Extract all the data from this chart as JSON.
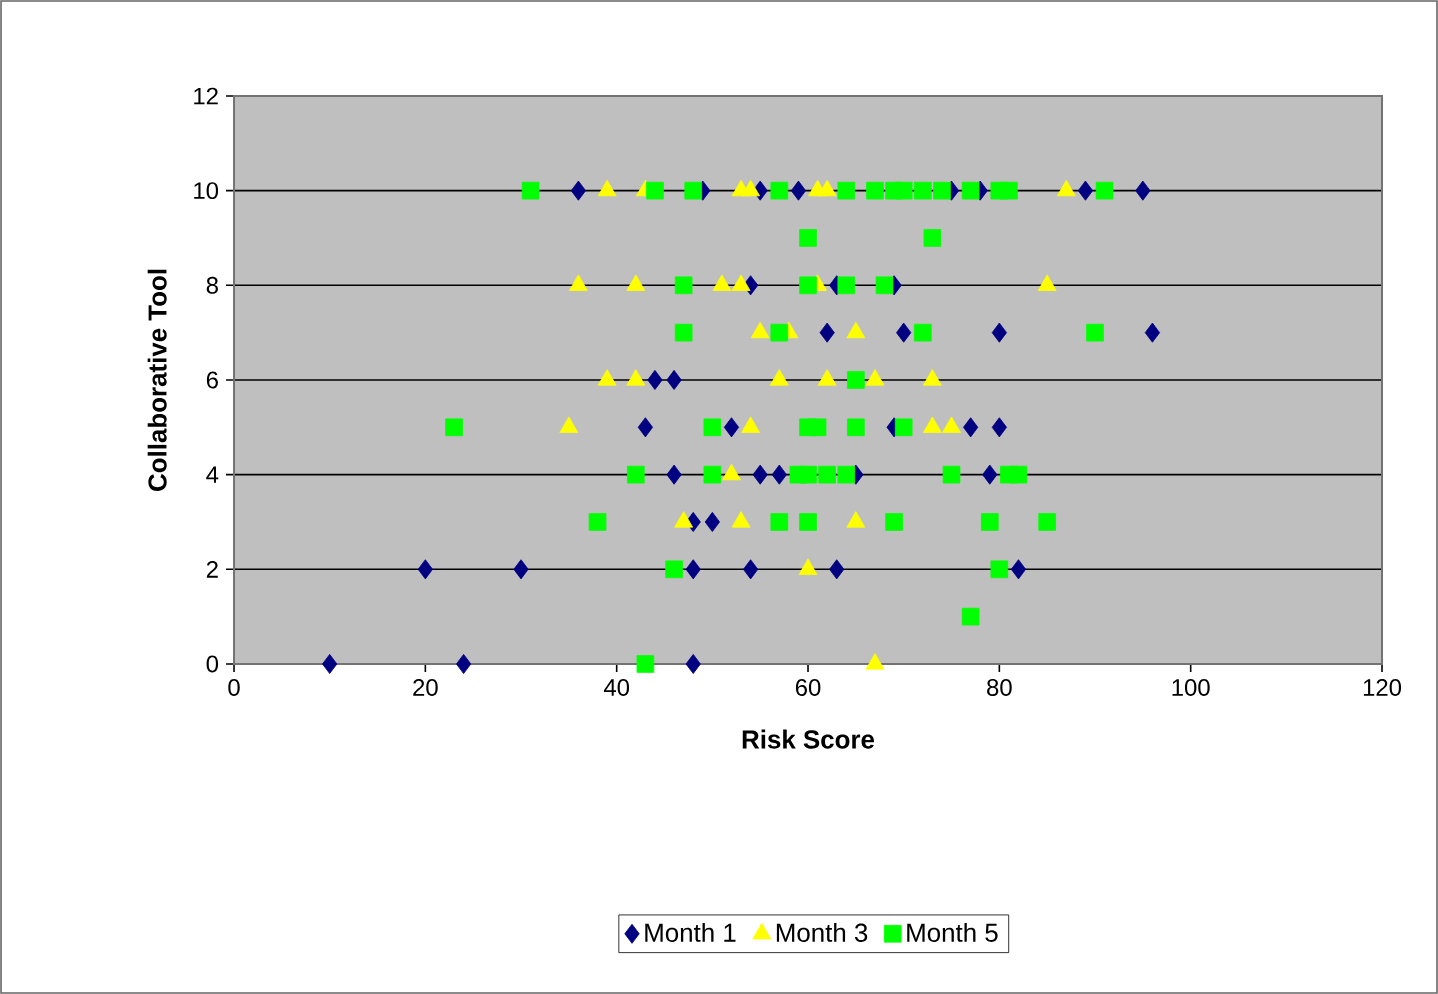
{
  "chart_data": {
    "type": "scatter",
    "xlabel": "Risk Score",
    "ylabel": "Collaborative Tool",
    "xlim": [
      0,
      120
    ],
    "xticks": [
      0,
      20,
      40,
      60,
      80,
      100,
      120
    ],
    "ylim": [
      0,
      12
    ],
    "yticks": [
      0,
      2,
      4,
      6,
      8,
      10,
      12
    ],
    "grid": "y",
    "legend": "bottom",
    "series": [
      {
        "name": "Month 1",
        "color": "#000080",
        "marker": "diamond",
        "x": [
          10,
          24,
          48,
          20,
          30,
          48,
          54,
          63,
          82,
          48,
          50,
          46,
          55,
          57,
          65,
          79,
          43,
          52,
          69,
          77,
          80,
          44,
          46,
          62,
          70,
          80,
          96,
          54,
          63,
          69,
          36,
          49,
          55,
          59,
          75,
          78,
          89,
          95
        ],
        "values": [
          0,
          0,
          0,
          2,
          2,
          2,
          2,
          2,
          2,
          3,
          3,
          4,
          4,
          4,
          4,
          4,
          5,
          5,
          5,
          5,
          5,
          6,
          6,
          7,
          7,
          7,
          7,
          8,
          8,
          8,
          10,
          10,
          10,
          10,
          10,
          10,
          10,
          10
        ]
      },
      {
        "name": "Month 3",
        "color": "#ffff00",
        "marker": "triangle",
        "x": [
          39,
          43,
          53,
          54,
          61,
          62,
          87,
          36,
          42,
          51,
          53,
          61,
          85,
          55,
          58,
          65,
          39,
          42,
          57,
          62,
          67,
          73,
          35,
          54,
          73,
          75,
          52,
          47,
          53,
          65,
          60,
          67
        ],
        "values": [
          10,
          10,
          10,
          10,
          10,
          10,
          10,
          8,
          8,
          8,
          8,
          8,
          8,
          7,
          7,
          7,
          6,
          6,
          6,
          6,
          6,
          6,
          5,
          5,
          5,
          5,
          4,
          3,
          3,
          3,
          2,
          0
        ]
      },
      {
        "name": "Month 5",
        "color": "#00ff00",
        "marker": "square",
        "x": [
          31,
          44,
          48,
          57,
          64,
          67,
          69,
          70,
          72,
          74,
          77,
          80,
          81,
          91,
          60,
          73,
          47,
          60,
          64,
          68,
          47,
          57,
          72,
          90,
          65,
          23,
          50,
          60,
          61,
          65,
          70,
          42,
          50,
          59,
          60,
          62,
          64,
          75,
          81,
          82,
          38,
          57,
          60,
          69,
          79,
          85,
          46,
          80,
          77,
          43
        ],
        "values": [
          10,
          10,
          10,
          10,
          10,
          10,
          10,
          10,
          10,
          10,
          10,
          10,
          10,
          10,
          9,
          9,
          8,
          8,
          8,
          8,
          7,
          7,
          7,
          7,
          6,
          5,
          5,
          5,
          5,
          5,
          5,
          4,
          4,
          4,
          4,
          4,
          4,
          4,
          4,
          4,
          3,
          3,
          3,
          3,
          3,
          3,
          2,
          2,
          1,
          0
        ]
      }
    ]
  }
}
